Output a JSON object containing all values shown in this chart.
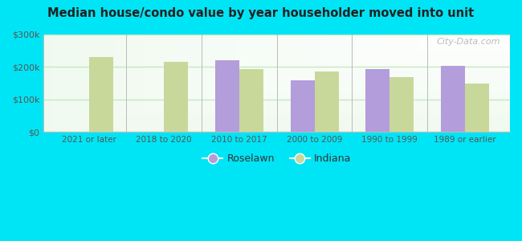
{
  "title": "Median house/condo value by year householder moved into unit",
  "categories": [
    "2021 or later",
    "2018 to 2020",
    "2010 to 2017",
    "2000 to 2009",
    "1990 to 1999",
    "1989 or earlier"
  ],
  "roselawn": [
    null,
    null,
    220000,
    160000,
    193000,
    203000
  ],
  "indiana": [
    230000,
    215000,
    193000,
    186000,
    168000,
    148000
  ],
  "roselawn_color": "#b39ddb",
  "indiana_color": "#c8d89a",
  "bg_outer": "#00e5f5",
  "bg_chart_top_left": "#d8f0d0",
  "bg_chart_top_right": "#ffffff",
  "bg_chart_bottom": "#d8f0d0",
  "ylim": [
    0,
    300000
  ],
  "yticks": [
    0,
    100000,
    200000,
    300000
  ],
  "ytick_labels": [
    "$0",
    "$100k",
    "$200k",
    "$300k"
  ],
  "legend_roselawn": "Roselawn",
  "legend_indiana": "Indiana",
  "watermark": "City-Data.com",
  "bar_width": 0.32,
  "grid_color": "#c8e8c0",
  "spine_color": "#bbbbbb"
}
